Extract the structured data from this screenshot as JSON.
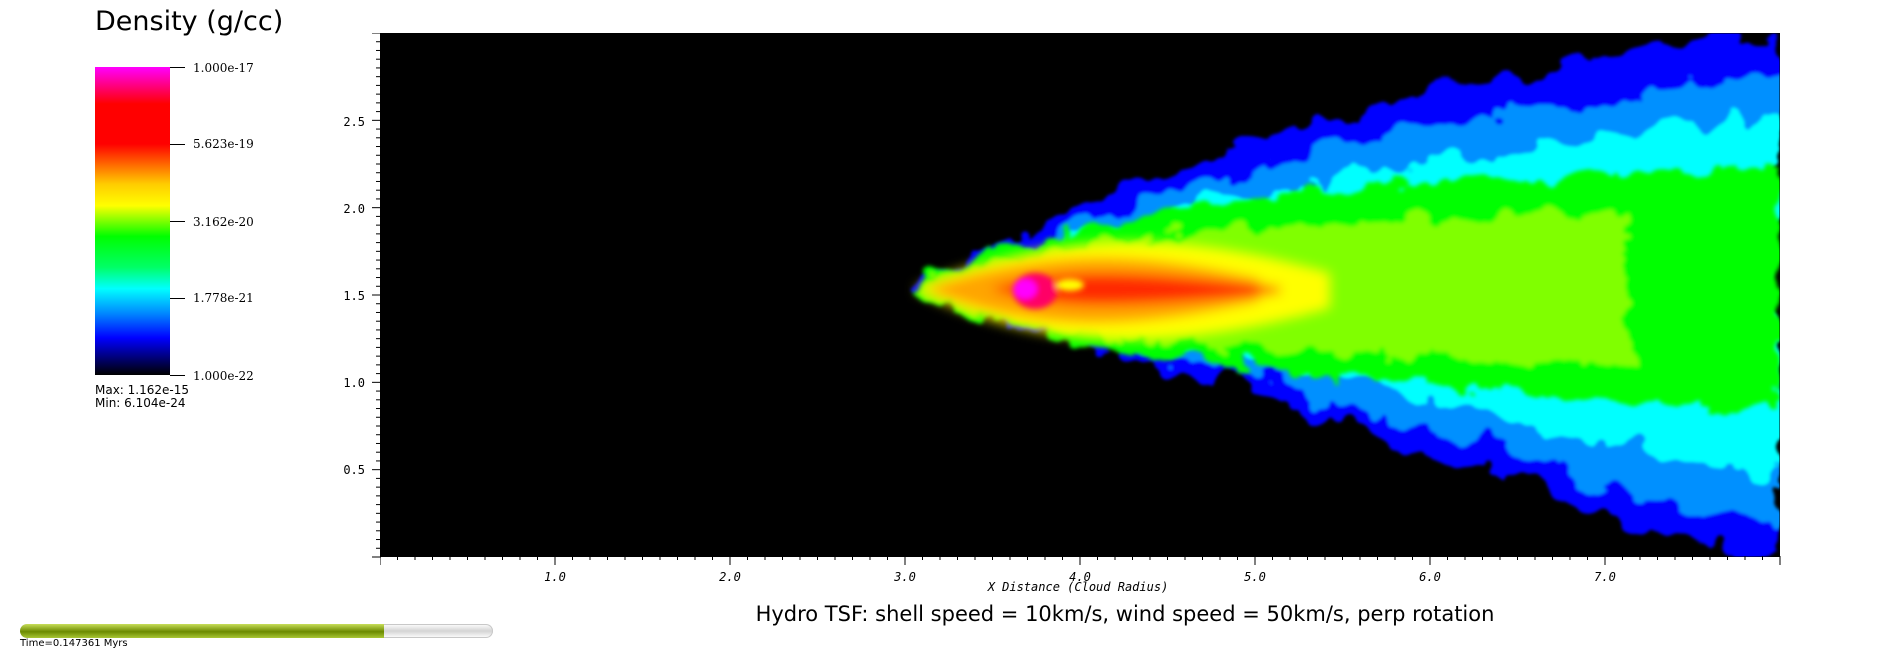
{
  "legend": {
    "title": "Density (g/cc)",
    "tick_labels": [
      "1.000e-17",
      "5.623e-19",
      "3.162e-20",
      "1.778e-21",
      "1.000e-22"
    ],
    "max_label": "Max:  1.162e-15",
    "min_label": "Min:  6.104e-24",
    "colormap": [
      "#ff00ff",
      "#ff0000",
      "#ffaa00",
      "#ffff00",
      "#00ff00",
      "#00ffff",
      "#0080ff",
      "#0000ff",
      "#000000"
    ]
  },
  "plot": {
    "title": "Hydro TSF: shell speed = 10km/s, wind speed = 50km/s, perp rotation",
    "xlabel": "X Distance (Cloud Radius)",
    "x_ticks": [
      "1.0",
      "2.0",
      "3.0",
      "4.0",
      "5.0",
      "6.0",
      "7.0"
    ],
    "y_ticks": [
      "2.5",
      "2.0",
      "1.5",
      "1.0",
      "0.5"
    ],
    "xlim": [
      0,
      8
    ],
    "ylim": [
      0,
      3
    ],
    "background": "#000000"
  },
  "time": {
    "label": "Time=0.147361 Myrs",
    "progress": 0.77
  }
}
